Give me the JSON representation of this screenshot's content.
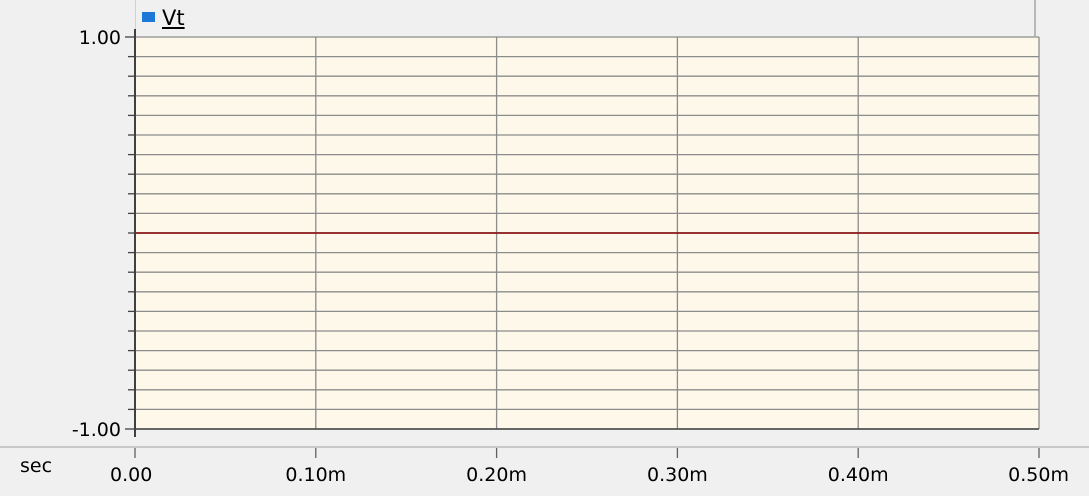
{
  "chart_data": {
    "type": "line",
    "title": "",
    "xlabel": "sec",
    "ylabel": "",
    "xlim": [
      0,
      0.0005
    ],
    "ylim": [
      -1,
      1
    ],
    "x_tick_labels": [
      "0.00",
      "0.10m",
      "0.20m",
      "0.30m",
      "0.40m",
      "0.50m"
    ],
    "x_tick_values": [
      0,
      0.0001,
      0.0002,
      0.0003,
      0.0004,
      0.0005
    ],
    "y_tick_labels": [
      "1.00",
      "-1.00"
    ],
    "y_tick_values": [
      1,
      -1
    ],
    "y_grid_count": 20,
    "grid": true,
    "legend": "top-left",
    "series": [
      {
        "name": "Vt",
        "legend_color": "#1e78d8",
        "line_color": "#8b1a1a",
        "x": [
          0,
          0.0005
        ],
        "y": [
          0,
          0
        ]
      }
    ]
  },
  "colors": {
    "plot_background": "#fdf8ea",
    "grid": "#8c8c8c",
    "page_background": "#f0f0f0"
  }
}
